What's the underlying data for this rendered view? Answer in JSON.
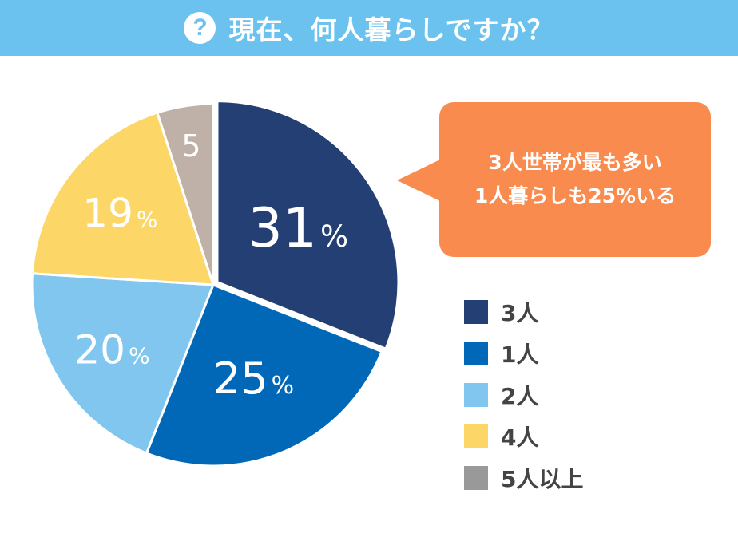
{
  "header": {
    "icon": "question-circle-icon",
    "title": "現在、何人暮らしですか？"
  },
  "callout": {
    "line1": "3人世帯が最も多い",
    "line2": "1人暮らしも25%いる"
  },
  "chart_data": {
    "type": "pie",
    "title": "",
    "slices": [
      {
        "name": "3人",
        "value": 31,
        "label": "31",
        "unit": "%",
        "color": "#243F73"
      },
      {
        "name": "1人",
        "value": 25,
        "label": "25",
        "unit": "%",
        "color": "#0068B7"
      },
      {
        "name": "2人",
        "value": 20,
        "label": "20",
        "unit": "%",
        "color": "#80C6EE"
      },
      {
        "name": "4人",
        "value": 19,
        "label": "19",
        "unit": "%",
        "color": "#FCD666"
      },
      {
        "name": "5人以上",
        "value": 5,
        "label": "5",
        "unit": "",
        "color": "#BFB0A8"
      }
    ],
    "legend_position": "right",
    "legend_swatch_colors": [
      "#243F73",
      "#0068B7",
      "#80C6EE",
      "#FCD666",
      "#999999"
    ]
  }
}
